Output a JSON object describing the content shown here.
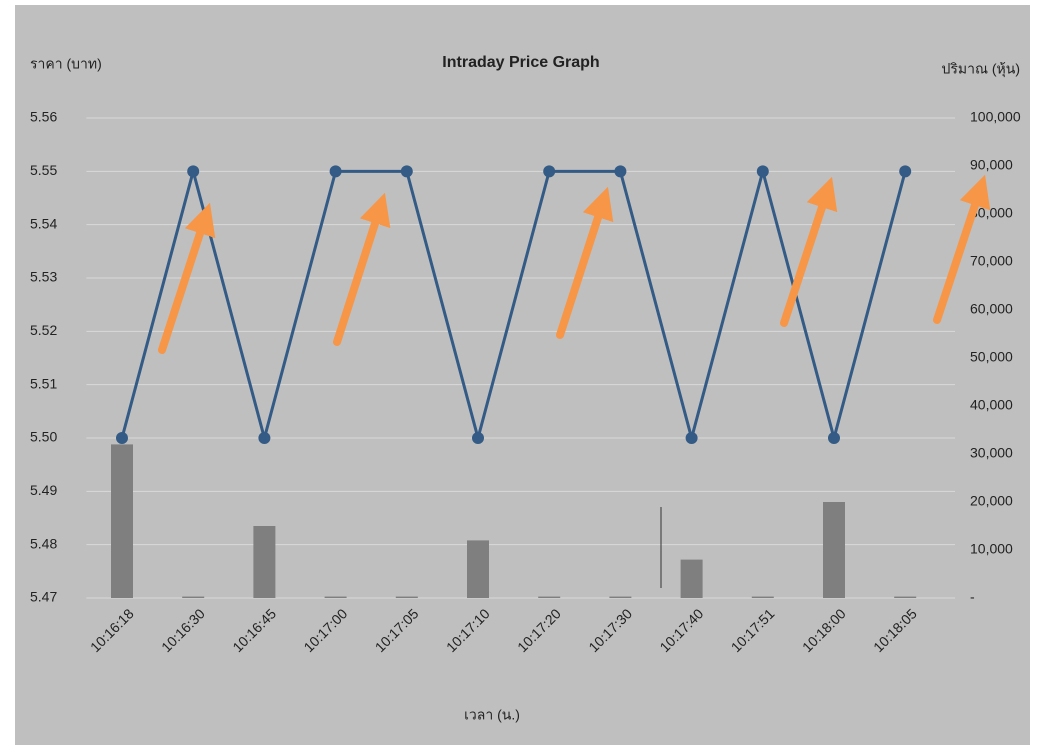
{
  "chart_data": {
    "type": "line",
    "title": "Intraday Price Graph",
    "ylabel": "ราคา (บาท)",
    "y2label": "ปริมาณ (หุ้น)",
    "xlabel": "เวลา (น.)",
    "categories": [
      "10:16:18",
      "10:16:30",
      "10:16:45",
      "10:17:00",
      "10:17:05",
      "10:17:10",
      "10:17:20",
      "10:17:30",
      "10:17:40",
      "10:17:51",
      "10:18:00",
      "10:18:05"
    ],
    "series": [
      {
        "name": "ราคา",
        "color": "#335b85",
        "values": [
          5.5,
          5.55,
          5.5,
          5.55,
          5.55,
          5.5,
          5.55,
          5.55,
          5.5,
          5.55,
          5.5,
          5.55
        ]
      },
      {
        "name": "ปริมาณ",
        "type": "bar",
        "axis": "y2",
        "color": "#7f7f7f",
        "values": [
          32000,
          300,
          15000,
          300,
          300,
          12000,
          300,
          300,
          8000,
          300,
          20000,
          300
        ]
      }
    ],
    "ylim": [
      5.47,
      5.56
    ],
    "yticks": [
      5.47,
      5.48,
      5.49,
      {
        "value": 5.5,
        "label": "5.50"
      },
      5.51,
      5.52,
      5.53,
      5.54,
      5.55,
      5.56
    ],
    "y2lim": [
      0,
      100000
    ],
    "y2ticks": [
      {
        "value": 0,
        "label": "-"
      },
      {
        "value": 10000,
        "label": "10,000"
      },
      {
        "value": 20000,
        "label": "20,000"
      },
      {
        "value": 30000,
        "label": "30,000"
      },
      {
        "value": 40000,
        "label": "40,000"
      },
      {
        "value": 50000,
        "label": "50,000"
      },
      {
        "value": 60000,
        "label": "60,000"
      },
      {
        "value": 70000,
        "label": "70,000"
      },
      {
        "value": 80000,
        "label": "80,000"
      },
      {
        "value": 90000,
        "label": "90,000"
      },
      {
        "value": 100000,
        "label": "100,000"
      }
    ],
    "grid": true
  }
}
